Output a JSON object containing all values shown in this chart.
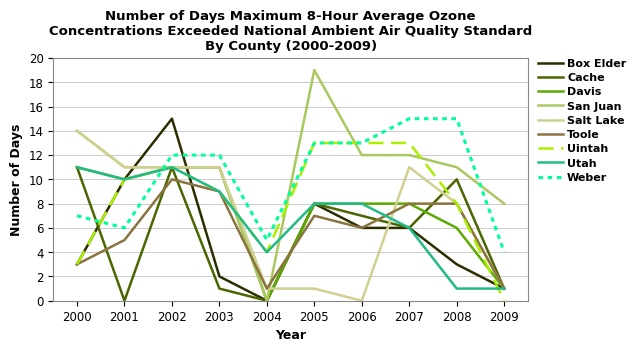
{
  "title": "Number of Days Maximum 8-Hour Average Ozone\nConcentrations Exceeded National Ambient Air Quality Standard\nBy County (2000-2009)",
  "xlabel": "Year",
  "ylabel": "Number of Days",
  "years": [
    2000,
    2001,
    2002,
    2003,
    2004,
    2005,
    2006,
    2007,
    2008,
    2009
  ],
  "series": [
    {
      "label": "Box Elder",
      "color": "#2d2d00",
      "linestyle": "solid",
      "linewidth": 1.8,
      "values": [
        3,
        10,
        15,
        2,
        0,
        8,
        6,
        6,
        3,
        1
      ]
    },
    {
      "label": "Cache",
      "color": "#4a6600",
      "linestyle": "solid",
      "linewidth": 1.8,
      "values": [
        11,
        0,
        11,
        1,
        0,
        8,
        7,
        6,
        10,
        1
      ]
    },
    {
      "label": "Davis",
      "color": "#5aaa00",
      "linestyle": "solid",
      "linewidth": 1.8,
      "values": [
        11,
        10,
        11,
        11,
        0,
        8,
        8,
        8,
        6,
        1
      ]
    },
    {
      "label": "San Juan",
      "color": "#aac860",
      "linestyle": "solid",
      "linewidth": 1.8,
      "values": [
        14,
        11,
        11,
        11,
        0,
        19,
        12,
        12,
        11,
        8
      ]
    },
    {
      "label": "Salt Lake",
      "color": "#d0d090",
      "linestyle": "solid",
      "linewidth": 1.8,
      "values": [
        14,
        11,
        11,
        11,
        1,
        1,
        0,
        11,
        8,
        1
      ]
    },
    {
      "label": "Toole",
      "color": "#8b7340",
      "linestyle": "solid",
      "linewidth": 1.8,
      "values": [
        3,
        5,
        10,
        9,
        1,
        7,
        6,
        8,
        8,
        1
      ]
    },
    {
      "label": "Uintah",
      "color": "#aaee00",
      "linestyle": "dashed",
      "linewidth": 1.8,
      "values": [
        3,
        10,
        11,
        9,
        4,
        13,
        13,
        13,
        8,
        0
      ]
    },
    {
      "label": "Utah",
      "color": "#22bb88",
      "linestyle": "solid",
      "linewidth": 1.8,
      "values": [
        11,
        10,
        11,
        9,
        4,
        8,
        8,
        6,
        1,
        1
      ]
    },
    {
      "label": "Weber",
      "color": "#00ff99",
      "linestyle": "dotted",
      "linewidth": 2.2,
      "values": [
        7,
        6,
        12,
        12,
        5,
        13,
        13,
        15,
        15,
        4
      ]
    }
  ],
  "ylim": [
    0,
    20
  ],
  "yticks": [
    0,
    2,
    4,
    6,
    8,
    10,
    12,
    14,
    16,
    18,
    20
  ],
  "background_color": "#ffffff",
  "title_fontsize": 9.5,
  "axis_label_fontsize": 9,
  "tick_fontsize": 8.5
}
